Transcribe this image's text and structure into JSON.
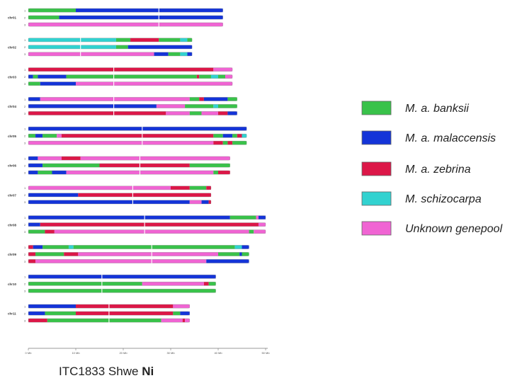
{
  "colors": {
    "banksii": "#39c24a",
    "malaccensis": "#1434d8",
    "zebrina": "#dc1748",
    "schizocarpa": "#32d2d0",
    "unknown": "#f064d3"
  },
  "legend": [
    {
      "key": "banksii",
      "label": "M. a. banksii"
    },
    {
      "key": "malaccensis",
      "label": "M. a. malaccensis"
    },
    {
      "key": "zebrina",
      "label": "M. a. zebrina"
    },
    {
      "key": "schizocarpa",
      "label": "M. schizocarpa"
    },
    {
      "key": "unknown",
      "label": "Unknown genepool"
    }
  ],
  "caption": {
    "name": "ITC1833 Shwe ",
    "suffix": "Ni"
  },
  "x_ticks": [
    "0 Mb",
    "10 Mb",
    "20 Mb",
    "30 Mb",
    "40 Mb",
    "50 Mb"
  ],
  "chart_data": {
    "type": "chromosome-painting",
    "unit": "Mb",
    "xlim": [
      0,
      50
    ],
    "chromosomes": [
      {
        "name": "chr01",
        "length": 41,
        "centromere": 27.5,
        "haplotypes": [
          {
            "label": "1",
            "segments": [
              [
                0,
                10,
                "banksii"
              ],
              [
                10,
                41,
                "malaccensis"
              ]
            ]
          },
          {
            "label": "2",
            "segments": [
              [
                0,
                6.5,
                "banksii"
              ],
              [
                6.5,
                41,
                "malaccensis"
              ]
            ]
          },
          {
            "label": "3",
            "segments": [
              [
                0,
                41,
                "unknown"
              ]
            ]
          }
        ]
      },
      {
        "name": "chr02",
        "length": 34.5,
        "centromere": 11,
        "haplotypes": [
          {
            "label": "1",
            "segments": [
              [
                0,
                18.5,
                "schizocarpa"
              ],
              [
                18.5,
                21.5,
                "banksii"
              ],
              [
                21.5,
                27.5,
                "zebrina"
              ],
              [
                27.5,
                32,
                "banksii"
              ],
              [
                32,
                33.5,
                "schizocarpa"
              ],
              [
                33.5,
                34.5,
                "banksii"
              ]
            ]
          },
          {
            "label": "2",
            "segments": [
              [
                0,
                18.5,
                "schizocarpa"
              ],
              [
                18.5,
                21,
                "banksii"
              ],
              [
                21,
                34.5,
                "malaccensis"
              ]
            ]
          },
          {
            "label": "3",
            "segments": [
              [
                0,
                26.5,
                "unknown"
              ],
              [
                26.5,
                29.5,
                "malaccensis"
              ],
              [
                29.5,
                32,
                "banksii"
              ],
              [
                32,
                33.5,
                "schizocarpa"
              ],
              [
                33.5,
                34.5,
                "malaccensis"
              ]
            ]
          }
        ]
      },
      {
        "name": "chr03",
        "length": 43,
        "centromere": 18,
        "haplotypes": [
          {
            "label": "1",
            "segments": [
              [
                0,
                39,
                "zebrina"
              ],
              [
                39,
                43,
                "unknown"
              ]
            ]
          },
          {
            "label": "2",
            "segments": [
              [
                0,
                1,
                "malaccensis"
              ],
              [
                1,
                2,
                "banksii"
              ],
              [
                2,
                8,
                "malaccensis"
              ],
              [
                8,
                35.5,
                "banksii"
              ],
              [
                35.5,
                36,
                "zebrina"
              ],
              [
                36,
                38.5,
                "banksii"
              ],
              [
                38.5,
                40,
                "schizocarpa"
              ],
              [
                40,
                41.5,
                "banksii"
              ],
              [
                41.5,
                43,
                "unknown"
              ]
            ]
          },
          {
            "label": "3",
            "segments": [
              [
                0,
                2.5,
                "banksii"
              ],
              [
                2.5,
                10,
                "malaccensis"
              ],
              [
                10,
                43,
                "unknown"
              ]
            ]
          }
        ]
      },
      {
        "name": "chr04",
        "length": 44,
        "centromere": 18,
        "haplotypes": [
          {
            "label": "1",
            "segments": [
              [
                0,
                2.5,
                "malaccensis"
              ],
              [
                2.5,
                34,
                "unknown"
              ],
              [
                34,
                36,
                "banksii"
              ],
              [
                36,
                37,
                "zebrina"
              ],
              [
                37,
                42,
                "malaccensis"
              ],
              [
                42,
                44,
                "banksii"
              ]
            ]
          },
          {
            "label": "2",
            "segments": [
              [
                0,
                27,
                "malaccensis"
              ],
              [
                27,
                33,
                "unknown"
              ],
              [
                33,
                39,
                "banksii"
              ],
              [
                39,
                40,
                "schizocarpa"
              ],
              [
                40,
                44,
                "banksii"
              ]
            ]
          },
          {
            "label": "3",
            "segments": [
              [
                0,
                29,
                "zebrina"
              ],
              [
                29,
                34,
                "unknown"
              ],
              [
                34,
                36.5,
                "banksii"
              ],
              [
                36.5,
                40,
                "unknown"
              ],
              [
                40,
                42,
                "zebrina"
              ],
              [
                42,
                44,
                "malaccensis"
              ]
            ]
          }
        ]
      },
      {
        "name": "chr05",
        "length": 46,
        "centromere": 24,
        "haplotypes": [
          {
            "label": "1",
            "segments": [
              [
                0,
                46,
                "malaccensis"
              ]
            ]
          },
          {
            "label": "2",
            "segments": [
              [
                0,
                1.5,
                "banksii"
              ],
              [
                1.5,
                3,
                "malaccensis"
              ],
              [
                3,
                6,
                "banksii"
              ],
              [
                6,
                7,
                "unknown"
              ],
              [
                7,
                39,
                "zebrina"
              ],
              [
                39,
                41,
                "banksii"
              ],
              [
                41,
                43,
                "malaccensis"
              ],
              [
                43,
                44,
                "banksii"
              ],
              [
                44,
                45,
                "zebrina"
              ],
              [
                45,
                46,
                "schizocarpa"
              ]
            ]
          },
          {
            "label": "3",
            "segments": [
              [
                0,
                39,
                "unknown"
              ],
              [
                39,
                41,
                "zebrina"
              ],
              [
                41,
                42,
                "banksii"
              ],
              [
                42,
                43,
                "zebrina"
              ],
              [
                43,
                46,
                "banksii"
              ]
            ]
          }
        ]
      },
      {
        "name": "chr06",
        "length": 42.5,
        "centromere": 23.5,
        "haplotypes": [
          {
            "label": "1",
            "segments": [
              [
                0,
                2,
                "malaccensis"
              ],
              [
                2,
                7,
                "unknown"
              ],
              [
                7,
                11,
                "zebrina"
              ],
              [
                11,
                42.5,
                "unknown"
              ]
            ]
          },
          {
            "label": "2",
            "segments": [
              [
                0,
                3,
                "malaccensis"
              ],
              [
                3,
                15,
                "banksii"
              ],
              [
                15,
                34,
                "zebrina"
              ],
              [
                34,
                42.5,
                "banksii"
              ]
            ]
          },
          {
            "label": "3",
            "segments": [
              [
                0,
                2,
                "malaccensis"
              ],
              [
                2,
                5,
                "banksii"
              ],
              [
                5,
                8,
                "malaccensis"
              ],
              [
                8,
                39,
                "unknown"
              ],
              [
                39,
                40,
                "banksii"
              ],
              [
                40,
                42.5,
                "zebrina"
              ]
            ]
          }
        ]
      },
      {
        "name": "chr07",
        "length": 38.5,
        "centromere": 22,
        "haplotypes": [
          {
            "label": "1",
            "segments": [
              [
                0,
                30,
                "unknown"
              ],
              [
                30,
                34,
                "zebrina"
              ],
              [
                34,
                37.5,
                "banksii"
              ],
              [
                37.5,
                38.5,
                "zebrina"
              ]
            ]
          },
          {
            "label": "2",
            "segments": [
              [
                0,
                10.5,
                "malaccensis"
              ],
              [
                10.5,
                38.5,
                "zebrina"
              ]
            ]
          },
          {
            "label": "3",
            "segments": [
              [
                0,
                34,
                "malaccensis"
              ],
              [
                34,
                36.5,
                "unknown"
              ],
              [
                36.5,
                38,
                "malaccensis"
              ],
              [
                38,
                38.5,
                "zebrina"
              ]
            ]
          }
        ]
      },
      {
        "name": "chr08",
        "length": 50,
        "centromere": 24.5,
        "haplotypes": [
          {
            "label": "1",
            "segments": [
              [
                0,
                42.5,
                "malaccensis"
              ],
              [
                42.5,
                48,
                "banksii"
              ],
              [
                48,
                48.5,
                "unknown"
              ],
              [
                48.5,
                50,
                "malaccensis"
              ]
            ]
          },
          {
            "label": "2",
            "segments": [
              [
                0,
                2.5,
                "malaccensis"
              ],
              [
                2.5,
                48.5,
                "zebrina"
              ],
              [
                48.5,
                50,
                "unknown"
              ]
            ]
          },
          {
            "label": "3",
            "segments": [
              [
                0,
                3.5,
                "banksii"
              ],
              [
                3.5,
                5.5,
                "zebrina"
              ],
              [
                5.5,
                46.5,
                "unknown"
              ],
              [
                46.5,
                47.5,
                "banksii"
              ],
              [
                47.5,
                50,
                "unknown"
              ]
            ]
          }
        ]
      },
      {
        "name": "chr09",
        "length": 46.5,
        "centromere": 26,
        "haplotypes": [
          {
            "label": "1",
            "segments": [
              [
                0,
                1,
                "zebrina"
              ],
              [
                1,
                3,
                "malaccensis"
              ],
              [
                3,
                8.5,
                "banksii"
              ],
              [
                8.5,
                9.5,
                "schizocarpa"
              ],
              [
                9.5,
                43.5,
                "banksii"
              ],
              [
                43.5,
                45,
                "schizocarpa"
              ],
              [
                45,
                46.5,
                "malaccensis"
              ]
            ]
          },
          {
            "label": "2",
            "segments": [
              [
                0,
                1.5,
                "zebrina"
              ],
              [
                1.5,
                7.5,
                "banksii"
              ],
              [
                7.5,
                10.5,
                "zebrina"
              ],
              [
                10.5,
                40,
                "unknown"
              ],
              [
                40,
                44.5,
                "banksii"
              ],
              [
                44.5,
                45,
                "malaccensis"
              ],
              [
                45,
                46.5,
                "banksii"
              ]
            ]
          },
          {
            "label": "3",
            "segments": [
              [
                0,
                1.5,
                "zebrina"
              ],
              [
                1.5,
                37.5,
                "unknown"
              ],
              [
                37.5,
                46.5,
                "malaccensis"
              ]
            ]
          }
        ]
      },
      {
        "name": "chr10",
        "length": 39.5,
        "centromere": 15.5,
        "haplotypes": [
          {
            "label": "1",
            "segments": [
              [
                0,
                39.5,
                "malaccensis"
              ]
            ]
          },
          {
            "label": "2",
            "segments": [
              [
                0,
                24,
                "banksii"
              ],
              [
                24,
                37,
                "unknown"
              ],
              [
                37,
                38,
                "zebrina"
              ],
              [
                38,
                39.5,
                "banksii"
              ]
            ]
          },
          {
            "label": "3",
            "segments": [
              [
                0,
                39.5,
                "banksii"
              ]
            ]
          }
        ]
      },
      {
        "name": "chr11",
        "length": 34,
        "centromere": 17,
        "haplotypes": [
          {
            "label": "1",
            "segments": [
              [
                0,
                10,
                "malaccensis"
              ],
              [
                10,
                30.5,
                "zebrina"
              ],
              [
                30.5,
                34,
                "unknown"
              ]
            ]
          },
          {
            "label": "2",
            "segments": [
              [
                0,
                3.5,
                "malaccensis"
              ],
              [
                3.5,
                10,
                "banksii"
              ],
              [
                10,
                30.5,
                "zebrina"
              ],
              [
                30.5,
                32,
                "banksii"
              ],
              [
                32,
                34,
                "malaccensis"
              ]
            ]
          },
          {
            "label": "3",
            "segments": [
              [
                0,
                4,
                "zebrina"
              ],
              [
                4,
                28,
                "banksii"
              ],
              [
                28,
                32.5,
                "unknown"
              ],
              [
                32.5,
                33,
                "zebrina"
              ],
              [
                33,
                34,
                "unknown"
              ]
            ]
          }
        ]
      }
    ]
  }
}
